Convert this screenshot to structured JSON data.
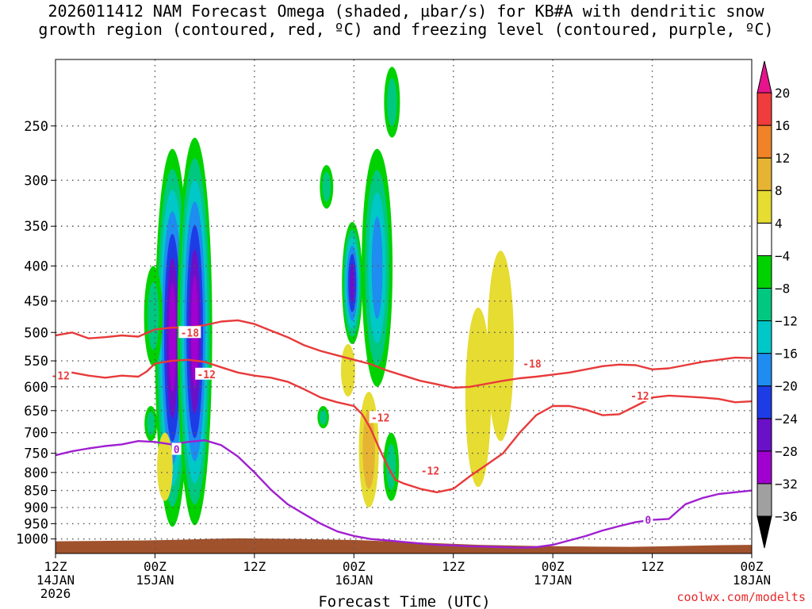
{
  "title_line1": "2026011412 NAM Forecast Omega (shaded, µbar/s) for KB#A with dendritic snow",
  "title_line2": "growth region (contoured, red, ºC) and freezing level (contoured, purple, ºC)",
  "credit": "coolwx.com/modelts",
  "chart_data": {
    "type": "heatmap",
    "xlabel": "Forecast Time (UTC)",
    "ylabel": "",
    "y_axis": "pressure (mb), log scale, inverted",
    "ylim": [
      1050,
      200
    ],
    "xlim_hours": [
      0,
      84
    ],
    "grid": true,
    "x_ticks": [
      {
        "hour": 0,
        "lines": [
          "12Z",
          "14JAN",
          "2026"
        ]
      },
      {
        "hour": 12,
        "lines": [
          "00Z",
          "15JAN"
        ]
      },
      {
        "hour": 24,
        "lines": [
          "12Z"
        ]
      },
      {
        "hour": 36,
        "lines": [
          "00Z",
          "16JAN"
        ]
      },
      {
        "hour": 48,
        "lines": [
          "12Z"
        ]
      },
      {
        "hour": 60,
        "lines": [
          "00Z",
          "17JAN"
        ]
      },
      {
        "hour": 72,
        "lines": [
          "12Z"
        ]
      },
      {
        "hour": 84,
        "lines": [
          "00Z",
          "18JAN"
        ]
      }
    ],
    "y_ticks": [
      250,
      300,
      350,
      400,
      450,
      500,
      550,
      600,
      650,
      700,
      750,
      800,
      850,
      900,
      950,
      1000
    ],
    "colorbar": {
      "levels": [
        -36,
        -32,
        -28,
        -24,
        -20,
        -16,
        -12,
        -8,
        -4,
        4,
        8,
        12,
        16,
        20
      ],
      "colors": [
        "#000000",
        "#a0a0a0",
        "#a000d0",
        "#6a10c8",
        "#1e3ce6",
        "#1e8cf0",
        "#00c8c8",
        "#00c880",
        "#00d200",
        "#ffffff",
        "#e6dc32",
        "#e6b432",
        "#f08228",
        "#f03c3c",
        "#e6148c"
      ]
    },
    "omega_regions": [
      {
        "hour": 14.1,
        "p_top": 270,
        "p_bot": 960,
        "peak": -28
      },
      {
        "hour": 16.8,
        "p_top": 260,
        "p_bot": 955,
        "peak": -28
      },
      {
        "hour": 13.2,
        "p_top": 700,
        "p_bot": 880,
        "peak": 4
      },
      {
        "hour": 11.8,
        "p_top": 400,
        "p_bot": 560,
        "peak": -8
      },
      {
        "hour": 11.5,
        "p_top": 640,
        "p_bot": 720,
        "peak": -8
      },
      {
        "hour": 32.7,
        "p_top": 285,
        "p_bot": 330,
        "peak": -8
      },
      {
        "hour": 32.3,
        "p_top": 640,
        "p_bot": 690,
        "peak": -8
      },
      {
        "hour": 35.8,
        "p_top": 345,
        "p_bot": 520,
        "peak": -24
      },
      {
        "hour": 38.8,
        "p_top": 270,
        "p_bot": 600,
        "peak": -16
      },
      {
        "hour": 40.6,
        "p_top": 205,
        "p_bot": 260,
        "peak": -8
      },
      {
        "hour": 40.5,
        "p_top": 700,
        "p_bot": 880,
        "peak": -8
      },
      {
        "hour": 37.8,
        "p_top": 610,
        "p_bot": 900,
        "peak": 8
      },
      {
        "hour": 35.3,
        "p_top": 520,
        "p_bot": 620,
        "peak": 4
      },
      {
        "hour": 51.0,
        "p_top": 460,
        "p_bot": 840,
        "peak": 4
      },
      {
        "hour": 53.7,
        "p_top": 380,
        "p_bot": 720,
        "peak": 4
      }
    ],
    "series": [
      {
        "name": "-18 °C (dendritic)",
        "color": "#e83a3a",
        "label": "-18",
        "hours": [
          0,
          2,
          4,
          6,
          8,
          10,
          12,
          14,
          16,
          18,
          20,
          22,
          24,
          26,
          28,
          30,
          32,
          34,
          36,
          38,
          40,
          42,
          44,
          46,
          48,
          50,
          52,
          54,
          56,
          58,
          60,
          62,
          64,
          66,
          68,
          70,
          72,
          74,
          76,
          78,
          80,
          82,
          84
        ],
        "pressure": [
          505,
          500,
          510,
          508,
          505,
          507,
          495,
          492,
          492,
          488,
          482,
          480,
          486,
          497,
          508,
          522,
          532,
          540,
          548,
          556,
          568,
          578,
          588,
          595,
          602,
          600,
          594,
          588,
          583,
          580,
          576,
          572,
          566,
          560,
          557,
          558,
          566,
          564,
          558,
          552,
          548,
          544,
          545
        ]
      },
      {
        "name": "-12 °C (dendritic)",
        "color": "#e83a3a",
        "label": "-12",
        "hours": [
          0,
          2,
          4,
          6,
          8,
          10,
          11,
          12,
          14,
          16,
          18,
          20,
          22,
          24,
          26,
          28,
          30,
          32,
          34,
          36,
          37,
          38,
          39,
          40,
          41,
          42,
          44,
          46,
          48,
          50,
          52,
          54,
          56,
          58,
          60,
          62,
          64,
          66,
          68,
          70,
          72,
          74,
          76,
          78,
          80,
          82,
          84
        ],
        "pressure": [
          578,
          572,
          578,
          582,
          578,
          580,
          570,
          555,
          550,
          548,
          552,
          562,
          572,
          578,
          582,
          590,
          605,
          622,
          632,
          640,
          658,
          690,
          735,
          780,
          820,
          830,
          845,
          855,
          845,
          810,
          780,
          750,
          700,
          660,
          640,
          640,
          648,
          660,
          658,
          640,
          622,
          618,
          620,
          622,
          625,
          632,
          630
        ]
      },
      {
        "name": "0 °C freezing level",
        "color": "#a020d0",
        "label": "0",
        "hours": [
          0,
          2,
          4,
          6,
          8,
          10,
          12,
          14,
          16,
          18,
          20,
          22,
          24,
          26,
          28,
          30,
          32,
          34,
          36,
          38,
          40,
          42,
          44,
          46,
          48,
          50,
          52,
          54,
          56,
          58,
          60,
          62,
          64,
          66,
          68,
          70,
          72,
          74,
          76,
          78,
          80,
          82,
          84
        ],
        "pressure": [
          755,
          745,
          738,
          732,
          728,
          720,
          722,
          728,
          722,
          718,
          730,
          758,
          800,
          848,
          890,
          920,
          950,
          975,
          990,
          1000,
          1005,
          1010,
          1015,
          1020,
          1022,
          1025,
          1026,
          1028,
          1030,
          1028,
          1020,
          1005,
          990,
          972,
          958,
          945,
          938,
          935,
          890,
          872,
          860,
          855,
          850
        ]
      }
    ],
    "contour_labels": [
      {
        "text": "-18",
        "hour": 16.2,
        "pressure": 500
      },
      {
        "text": "-12",
        "hour": 0.6,
        "pressure": 578
      },
      {
        "text": "-12",
        "hour": 18.2,
        "pressure": 575
      },
      {
        "text": "-12",
        "hour": 39.2,
        "pressure": 665
      },
      {
        "text": "-12",
        "hour": 45.2,
        "pressure": 795
      },
      {
        "text": "-18",
        "hour": 57.5,
        "pressure": 555
      },
      {
        "text": "-12",
        "hour": 70.5,
        "pressure": 618
      },
      {
        "text": "0",
        "hour": 14.6,
        "pressure": 740
      },
      {
        "text": "0",
        "hour": 71.5,
        "pressure": 938
      }
    ],
    "terrain_pressure": [
      1008,
      1007,
      1006,
      1005,
      1003,
      1000,
      998,
      999,
      1000,
      1002,
      1004,
      1008,
      1012,
      1016,
      1020,
      1022,
      1024,
      1025,
      1026,
      1027,
      1025,
      1023,
      1021,
      1020
    ]
  }
}
